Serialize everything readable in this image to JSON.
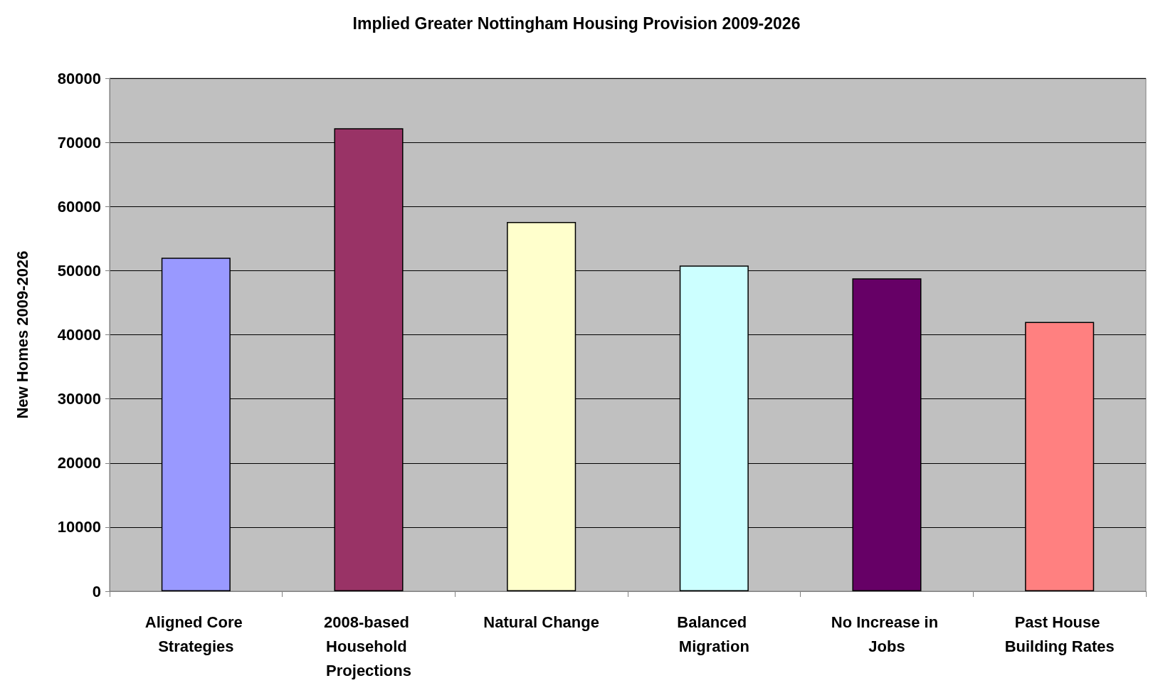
{
  "chart_data": {
    "type": "bar",
    "title": "Implied Greater Nottingham Housing Provision 2009-2026",
    "ylabel": "New Homes 2009-2026",
    "categories": [
      "Aligned Core Strategies",
      "2008-based Household Projections",
      "Natural Change",
      "Balanced Migration",
      "No Increase in Jobs",
      "Past House Building Rates"
    ],
    "values": [
      52000,
      72200,
      57600,
      50800,
      48800,
      42000
    ],
    "colors": [
      "#9999ff",
      "#993366",
      "#ffffcc",
      "#ccffff",
      "#660066",
      "#ff8080"
    ],
    "ylim": [
      0,
      80000
    ],
    "yticks": [
      0,
      10000,
      20000,
      30000,
      40000,
      50000,
      60000,
      70000,
      80000
    ],
    "grid": "y"
  }
}
